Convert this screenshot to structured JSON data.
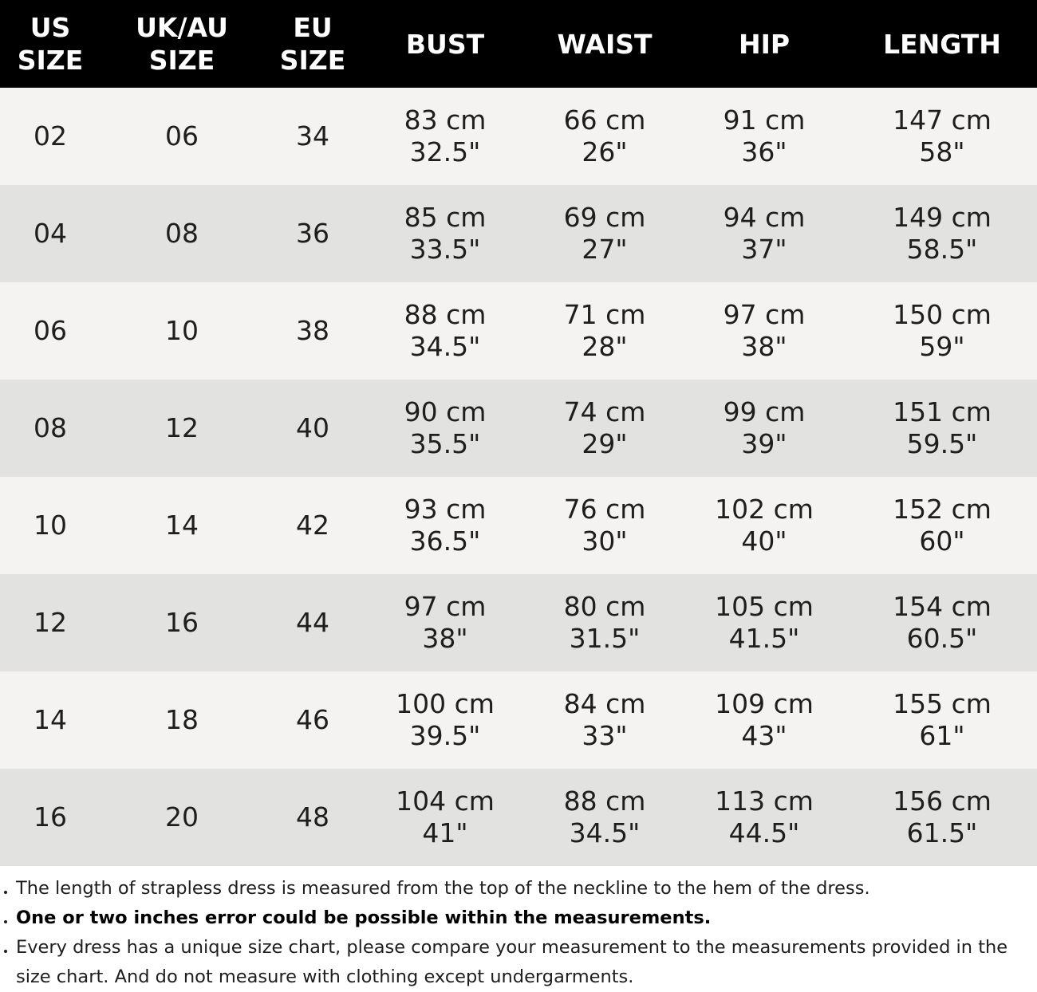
{
  "headers": [
    {
      "line1": "US",
      "line2": "SIZE"
    },
    {
      "line1": "UK/AU",
      "line2": "SIZE"
    },
    {
      "line1": "EU",
      "line2": "SIZE"
    },
    {
      "line1": "BUST",
      "line2": ""
    },
    {
      "line1": "WAIST",
      "line2": ""
    },
    {
      "line1": "HIP",
      "line2": ""
    },
    {
      "line1": "LENGTH",
      "line2": ""
    }
  ],
  "rows": [
    {
      "us": "02",
      "uk": "06",
      "eu": "34",
      "bust": [
        "83 cm",
        "32.5\""
      ],
      "waist": [
        "66 cm",
        "26\""
      ],
      "hip": [
        "91 cm",
        "36\""
      ],
      "length": [
        "147 cm",
        "58\""
      ]
    },
    {
      "us": "04",
      "uk": "08",
      "eu": "36",
      "bust": [
        "85 cm",
        "33.5\""
      ],
      "waist": [
        "69 cm",
        "27\""
      ],
      "hip": [
        "94 cm",
        "37\""
      ],
      "length": [
        "149 cm",
        "58.5\""
      ]
    },
    {
      "us": "06",
      "uk": "10",
      "eu": "38",
      "bust": [
        "88 cm",
        "34.5\""
      ],
      "waist": [
        "71 cm",
        "28\""
      ],
      "hip": [
        "97 cm",
        "38\""
      ],
      "length": [
        "150 cm",
        "59\""
      ]
    },
    {
      "us": "08",
      "uk": "12",
      "eu": "40",
      "bust": [
        "90 cm",
        "35.5\""
      ],
      "waist": [
        "74 cm",
        "29\""
      ],
      "hip": [
        "99 cm",
        "39\""
      ],
      "length": [
        "151 cm",
        "59.5\""
      ]
    },
    {
      "us": "10",
      "uk": "14",
      "eu": "42",
      "bust": [
        "93 cm",
        "36.5\""
      ],
      "waist": [
        "76 cm",
        "30\""
      ],
      "hip": [
        "102 cm",
        "40\""
      ],
      "length": [
        "152 cm",
        "60\""
      ]
    },
    {
      "us": "12",
      "uk": "16",
      "eu": "44",
      "bust": [
        "97 cm",
        "38\""
      ],
      "waist": [
        "80 cm",
        "31.5\""
      ],
      "hip": [
        "105 cm",
        "41.5\""
      ],
      "length": [
        "154 cm",
        "60.5\""
      ]
    },
    {
      "us": "14",
      "uk": "18",
      "eu": "46",
      "bust": [
        "100 cm",
        "39.5\""
      ],
      "waist": [
        "84 cm",
        "33\""
      ],
      "hip": [
        "109 cm",
        "43\""
      ],
      "length": [
        "155 cm",
        "61\""
      ]
    },
    {
      "us": "16",
      "uk": "20",
      "eu": "48",
      "bust": [
        "104 cm",
        "41\""
      ],
      "waist": [
        "88 cm",
        "34.5\""
      ],
      "hip": [
        "113 cm",
        "44.5\""
      ],
      "length": [
        "156 cm",
        "61.5\""
      ]
    }
  ],
  "notes": [
    {
      "text": "The length of strapless dress is measured from the top of the neckline to the hem of the dress.",
      "bold": false
    },
    {
      "text": "One or two inches error could be possible within the measurements.",
      "bold": true
    },
    {
      "text": "Every dress has a unique size chart, please compare your measurement to the measurements provided in the size chart. And do not measure with clothing except undergarments.",
      "bold": false
    }
  ],
  "colors": {
    "header_bg": "#000000",
    "header_text": "#ffffff",
    "row_light": "#f4f3f1",
    "row_dark": "#e2e2e0"
  }
}
